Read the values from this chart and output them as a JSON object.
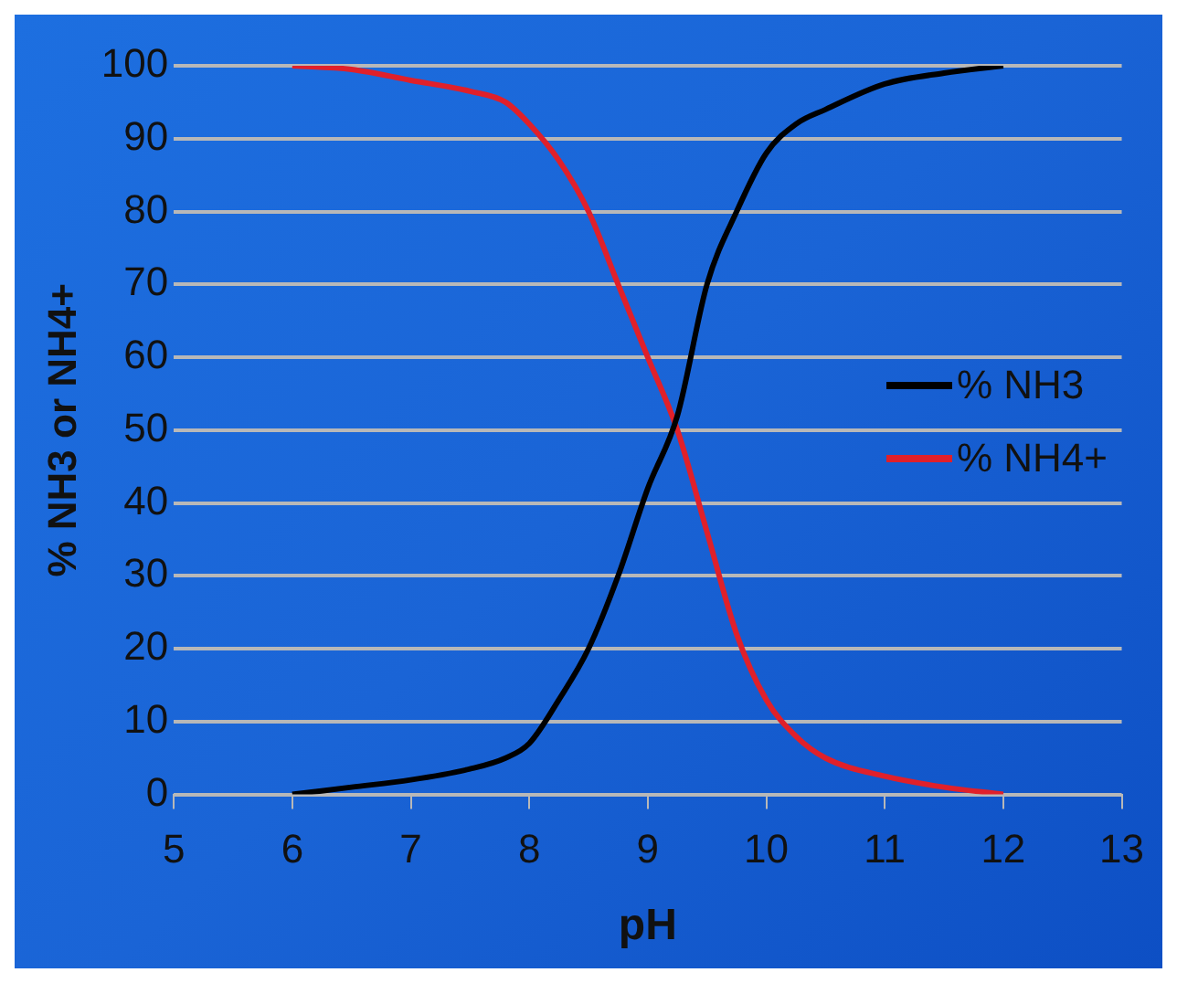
{
  "chart_data": {
    "type": "line",
    "xlabel": "pH",
    "ylabel": "% NH3 or NH4+",
    "xlim": [
      5,
      13
    ],
    "xticks": [
      5,
      6,
      7,
      8,
      9,
      10,
      11,
      12,
      13
    ],
    "ylim": [
      0,
      100
    ],
    "yticks": [
      0,
      10,
      20,
      30,
      40,
      50,
      60,
      70,
      80,
      90,
      100
    ],
    "grid": "y",
    "legend": "right",
    "marker": "none",
    "line_style": "solid",
    "series": [
      {
        "name": "% NH3",
        "color": "#000000",
        "x": [
          6,
          6.5,
          7,
          7.5,
          7.8,
          8,
          8.25,
          8.5,
          8.75,
          9,
          9.25,
          9.5,
          9.75,
          10,
          10.25,
          10.5,
          11,
          11.5,
          12
        ],
        "values": [
          0,
          1,
          2,
          3.5,
          5,
          7,
          13,
          20,
          30,
          42,
          52,
          70,
          80,
          88,
          92,
          94,
          97.5,
          99,
          100
        ]
      },
      {
        "name": "% NH4+",
        "color": "#e0202a",
        "x": [
          6,
          6.5,
          7,
          7.5,
          7.8,
          8,
          8.25,
          8.5,
          8.75,
          9,
          9.25,
          9.5,
          9.75,
          10,
          10.25,
          10.5,
          11,
          11.5,
          12
        ],
        "values": [
          100,
          99.5,
          98,
          96.5,
          95,
          92,
          87,
          80,
          70,
          60,
          50,
          36,
          22,
          13,
          8,
          5,
          2.5,
          1,
          0
        ]
      }
    ]
  }
}
